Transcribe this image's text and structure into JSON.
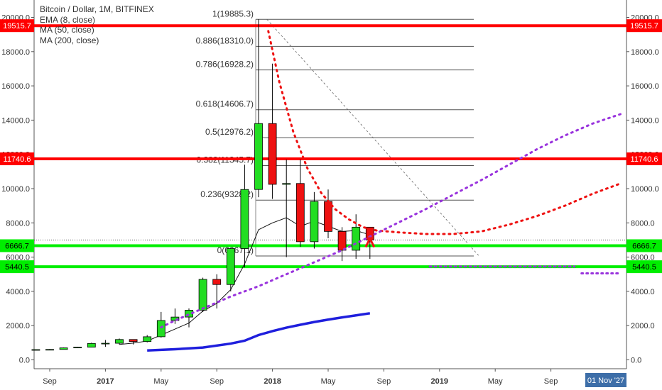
{
  "legend": {
    "title": "Bitcoin / Dollar, 1M, BITFINEX",
    "indicators": [
      "EMA (8, close)",
      "MA (50, close)",
      "MA (200, close)"
    ]
  },
  "chart_data": {
    "type": "candlestick",
    "title": "Bitcoin / Dollar, 1M, BITFINEX",
    "ylim": [
      -500,
      20500
    ],
    "y_ticks": [
      0,
      2000,
      4000,
      6000,
      8000,
      10000,
      12000,
      14000,
      16000,
      18000,
      20000
    ],
    "y_tick_labels": [
      "0.0",
      "2000.0",
      "4000.0",
      "6000.0",
      "8000.0",
      "10000.0",
      "12000.0",
      "14000.0",
      "16000.0",
      "18000.0",
      "20000.0"
    ],
    "x_tick_labels": [
      {
        "label": "Sep",
        "t": 0,
        "bold": false
      },
      {
        "label": "2017",
        "t": 4,
        "bold": true
      },
      {
        "label": "May",
        "t": 8,
        "bold": false
      },
      {
        "label": "Sep",
        "t": 12,
        "bold": false
      },
      {
        "label": "2018",
        "t": 16,
        "bold": true
      },
      {
        "label": "May",
        "t": 20,
        "bold": false
      },
      {
        "label": "Sep",
        "t": 24,
        "bold": false
      },
      {
        "label": "2019",
        "t": 28,
        "bold": true
      },
      {
        "label": "May",
        "t": 32,
        "bold": false
      },
      {
        "label": "Sep",
        "t": 36,
        "bold": false
      }
    ],
    "date_badge": "01 Nov '27",
    "candles": [
      {
        "t": -1,
        "o": 580,
        "h": 610,
        "l": 550,
        "c": 600
      },
      {
        "t": 0,
        "o": 600,
        "h": 630,
        "l": 590,
        "c": 610
      },
      {
        "t": 1,
        "o": 610,
        "h": 720,
        "l": 600,
        "c": 700
      },
      {
        "t": 2,
        "o": 700,
        "h": 760,
        "l": 690,
        "c": 740
      },
      {
        "t": 3,
        "o": 740,
        "h": 1000,
        "l": 730,
        "c": 960
      },
      {
        "t": 4,
        "o": 960,
        "h": 1160,
        "l": 760,
        "c": 970
      },
      {
        "t": 5,
        "o": 970,
        "h": 1250,
        "l": 900,
        "c": 1190
      },
      {
        "t": 6,
        "o": 1190,
        "h": 1200,
        "l": 900,
        "c": 1070
      },
      {
        "t": 7,
        "o": 1070,
        "h": 1450,
        "l": 1020,
        "c": 1350
      },
      {
        "t": 8,
        "o": 1350,
        "h": 2800,
        "l": 1300,
        "c": 2300
      },
      {
        "t": 9,
        "o": 2300,
        "h": 3000,
        "l": 2100,
        "c": 2500
      },
      {
        "t": 10,
        "o": 2500,
        "h": 3000,
        "l": 1900,
        "c": 2900
      },
      {
        "t": 11,
        "o": 2900,
        "h": 4800,
        "l": 2800,
        "c": 4700
      },
      {
        "t": 12,
        "o": 4700,
        "h": 5000,
        "l": 3000,
        "c": 4400
      },
      {
        "t": 13,
        "o": 4400,
        "h": 6400,
        "l": 4000,
        "c": 6500
      },
      {
        "t": 14,
        "o": 6500,
        "h": 11400,
        "l": 5400,
        "c": 9950
      },
      {
        "t": 15,
        "o": 9950,
        "h": 19885,
        "l": 9500,
        "c": 13800
      },
      {
        "t": 16,
        "o": 13800,
        "h": 17300,
        "l": 9400,
        "c": 10250
      },
      {
        "t": 17,
        "o": 10250,
        "h": 11700,
        "l": 6000,
        "c": 10300
      },
      {
        "t": 18,
        "o": 10300,
        "h": 11700,
        "l": 6600,
        "c": 6900
      },
      {
        "t": 19,
        "o": 6900,
        "h": 9800,
        "l": 6500,
        "c": 9250
      },
      {
        "t": 20,
        "o": 9250,
        "h": 9950,
        "l": 7100,
        "c": 7500
      },
      {
        "t": 21,
        "o": 7500,
        "h": 7750,
        "l": 5770,
        "c": 6400
      },
      {
        "t": 22,
        "o": 6400,
        "h": 8500,
        "l": 5900,
        "c": 7750
      },
      {
        "t": 23,
        "o": 7750,
        "h": 7700,
        "l": 5900,
        "c": 7000
      }
    ],
    "fibonacci": [
      {
        "label": "1(19885.3)",
        "value": 19885.3
      },
      {
        "label": "0.886(18310.0)",
        "value": 18310.0
      },
      {
        "label": "0.786(16928.2)",
        "value": 16928.2
      },
      {
        "label": "0.618(14606.7)",
        "value": 14606.7
      },
      {
        "label": "0.5(12976.2)",
        "value": 12976.2
      },
      {
        "label": "0.382(11345.7)",
        "value": 11345.7
      },
      {
        "label": "0.236(9328.2)",
        "value": 9328.2
      },
      {
        "label": "0(6067.1)",
        "value": 6067.1
      }
    ],
    "horizontal_levels": [
      {
        "value": 19515.7,
        "label": "19515.7",
        "color": "#ff0000"
      },
      {
        "value": 11740.6,
        "label": "11740.6",
        "color": "#ff0000"
      },
      {
        "value": 6666.7,
        "label": "6666.7",
        "color": "#00ee00"
      },
      {
        "value": 5440.5,
        "label": "5440.5",
        "color": "#00ee00"
      }
    ],
    "price_line": {
      "value": 7000
    },
    "ema8": [
      {
        "t": 5,
        "v": 900
      },
      {
        "t": 6,
        "v": 980
      },
      {
        "t": 7,
        "v": 1100
      },
      {
        "t": 8,
        "v": 1450
      },
      {
        "t": 9,
        "v": 1800
      },
      {
        "t": 10,
        "v": 2150
      },
      {
        "t": 11,
        "v": 2850
      },
      {
        "t": 12,
        "v": 3300
      },
      {
        "t": 13,
        "v": 4100
      },
      {
        "t": 14,
        "v": 5600
      },
      {
        "t": 15,
        "v": 7600
      },
      {
        "t": 16,
        "v": 8000
      },
      {
        "t": 17,
        "v": 8300
      },
      {
        "t": 18,
        "v": 7800
      },
      {
        "t": 19,
        "v": 8100
      },
      {
        "t": 20,
        "v": 7800
      },
      {
        "t": 21,
        "v": 7500
      },
      {
        "t": 22,
        "v": 7550
      },
      {
        "t": 23,
        "v": 7300
      }
    ],
    "ma50": [
      {
        "t": 7,
        "v": 550
      },
      {
        "t": 9,
        "v": 620
      },
      {
        "t": 11,
        "v": 720
      },
      {
        "t": 13,
        "v": 950
      },
      {
        "t": 14,
        "v": 1120
      },
      {
        "t": 15,
        "v": 1450
      },
      {
        "t": 16,
        "v": 1680
      },
      {
        "t": 17,
        "v": 1880
      },
      {
        "t": 18,
        "v": 2050
      },
      {
        "t": 19,
        "v": 2210
      },
      {
        "t": 20,
        "v": 2350
      },
      {
        "t": 21,
        "v": 2480
      },
      {
        "t": 22,
        "v": 2600
      },
      {
        "t": 23,
        "v": 2720
      }
    ],
    "projection_red": [
      {
        "t": 15.7,
        "v": 19200
      },
      {
        "t": 16.5,
        "v": 16200
      },
      {
        "t": 17.5,
        "v": 13300
      },
      {
        "t": 18.5,
        "v": 11200
      },
      {
        "t": 19.5,
        "v": 9750
      },
      {
        "t": 20.5,
        "v": 8800
      },
      {
        "t": 21.5,
        "v": 8200
      },
      {
        "t": 22.5,
        "v": 7750
      },
      {
        "t": 23.5,
        "v": 7550
      },
      {
        "t": 25,
        "v": 7450
      },
      {
        "t": 27,
        "v": 7350
      },
      {
        "t": 29,
        "v": 7350
      },
      {
        "t": 31,
        "v": 7500
      },
      {
        "t": 33,
        "v": 7900
      },
      {
        "t": 35,
        "v": 8400
      },
      {
        "t": 37,
        "v": 9000
      },
      {
        "t": 39,
        "v": 9700
      },
      {
        "t": 41,
        "v": 10300
      }
    ],
    "projection_purple": [
      {
        "t": 8,
        "v": 1900
      },
      {
        "t": 9,
        "v": 2300
      },
      {
        "t": 11,
        "v": 3000
      },
      {
        "t": 13,
        "v": 3700
      },
      {
        "t": 15,
        "v": 4300
      },
      {
        "t": 17,
        "v": 5000
      },
      {
        "t": 19,
        "v": 5700
      },
      {
        "t": 21,
        "v": 6400
      },
      {
        "t": 23,
        "v": 7200
      },
      {
        "t": 25,
        "v": 8000
      },
      {
        "t": 27,
        "v": 8800
      },
      {
        "t": 29,
        "v": 9650
      },
      {
        "t": 31,
        "v": 10500
      },
      {
        "t": 33,
        "v": 11400
      },
      {
        "t": 35,
        "v": 12300
      },
      {
        "t": 37,
        "v": 13100
      },
      {
        "t": 39,
        "v": 13800
      },
      {
        "t": 41,
        "v": 14350
      }
    ],
    "purple_support_segments": [
      {
        "t1": 27.3,
        "t2": 37.7,
        "v": 5450
      },
      {
        "t1": 38.2,
        "t2": 41.0,
        "v": 5050
      }
    ],
    "trendline": {
      "t1": 15.6,
      "v1": 19885,
      "t2": 30.8,
      "v2": 6100
    },
    "target_marker": {
      "t": 23,
      "v": 7000
    }
  }
}
